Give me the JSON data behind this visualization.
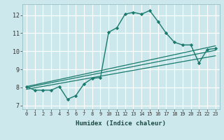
{
  "xlabel": "Humidex (Indice chaleur)",
  "bg_color": "#cde8ec",
  "grid_color": "#ffffff",
  "line_color": "#1a7a6e",
  "xlim": [
    -0.5,
    23.5
  ],
  "ylim": [
    6.8,
    12.6
  ],
  "xticks": [
    0,
    1,
    2,
    3,
    4,
    5,
    6,
    7,
    8,
    9,
    10,
    11,
    12,
    13,
    14,
    15,
    16,
    17,
    18,
    19,
    20,
    21,
    22,
    23
  ],
  "yticks": [
    7,
    8,
    9,
    10,
    11,
    12
  ],
  "main_x": [
    0,
    1,
    2,
    3,
    4,
    5,
    6,
    7,
    8,
    9,
    10,
    11,
    12,
    13,
    14,
    15,
    16,
    17,
    18,
    19,
    20,
    21,
    22,
    23
  ],
  "main_y": [
    8.05,
    7.85,
    7.85,
    7.85,
    8.05,
    7.35,
    7.55,
    8.2,
    8.5,
    8.55,
    11.05,
    11.3,
    12.05,
    12.15,
    12.05,
    12.25,
    11.65,
    11.0,
    10.5,
    10.35,
    10.35,
    9.35,
    10.1,
    10.15
  ],
  "trend1_x": [
    0,
    23
  ],
  "trend1_y": [
    8.05,
    10.3
  ],
  "trend2_x": [
    0,
    23
  ],
  "trend2_y": [
    8.0,
    10.05
  ],
  "trend3_x": [
    0,
    23
  ],
  "trend3_y": [
    7.9,
    9.75
  ]
}
